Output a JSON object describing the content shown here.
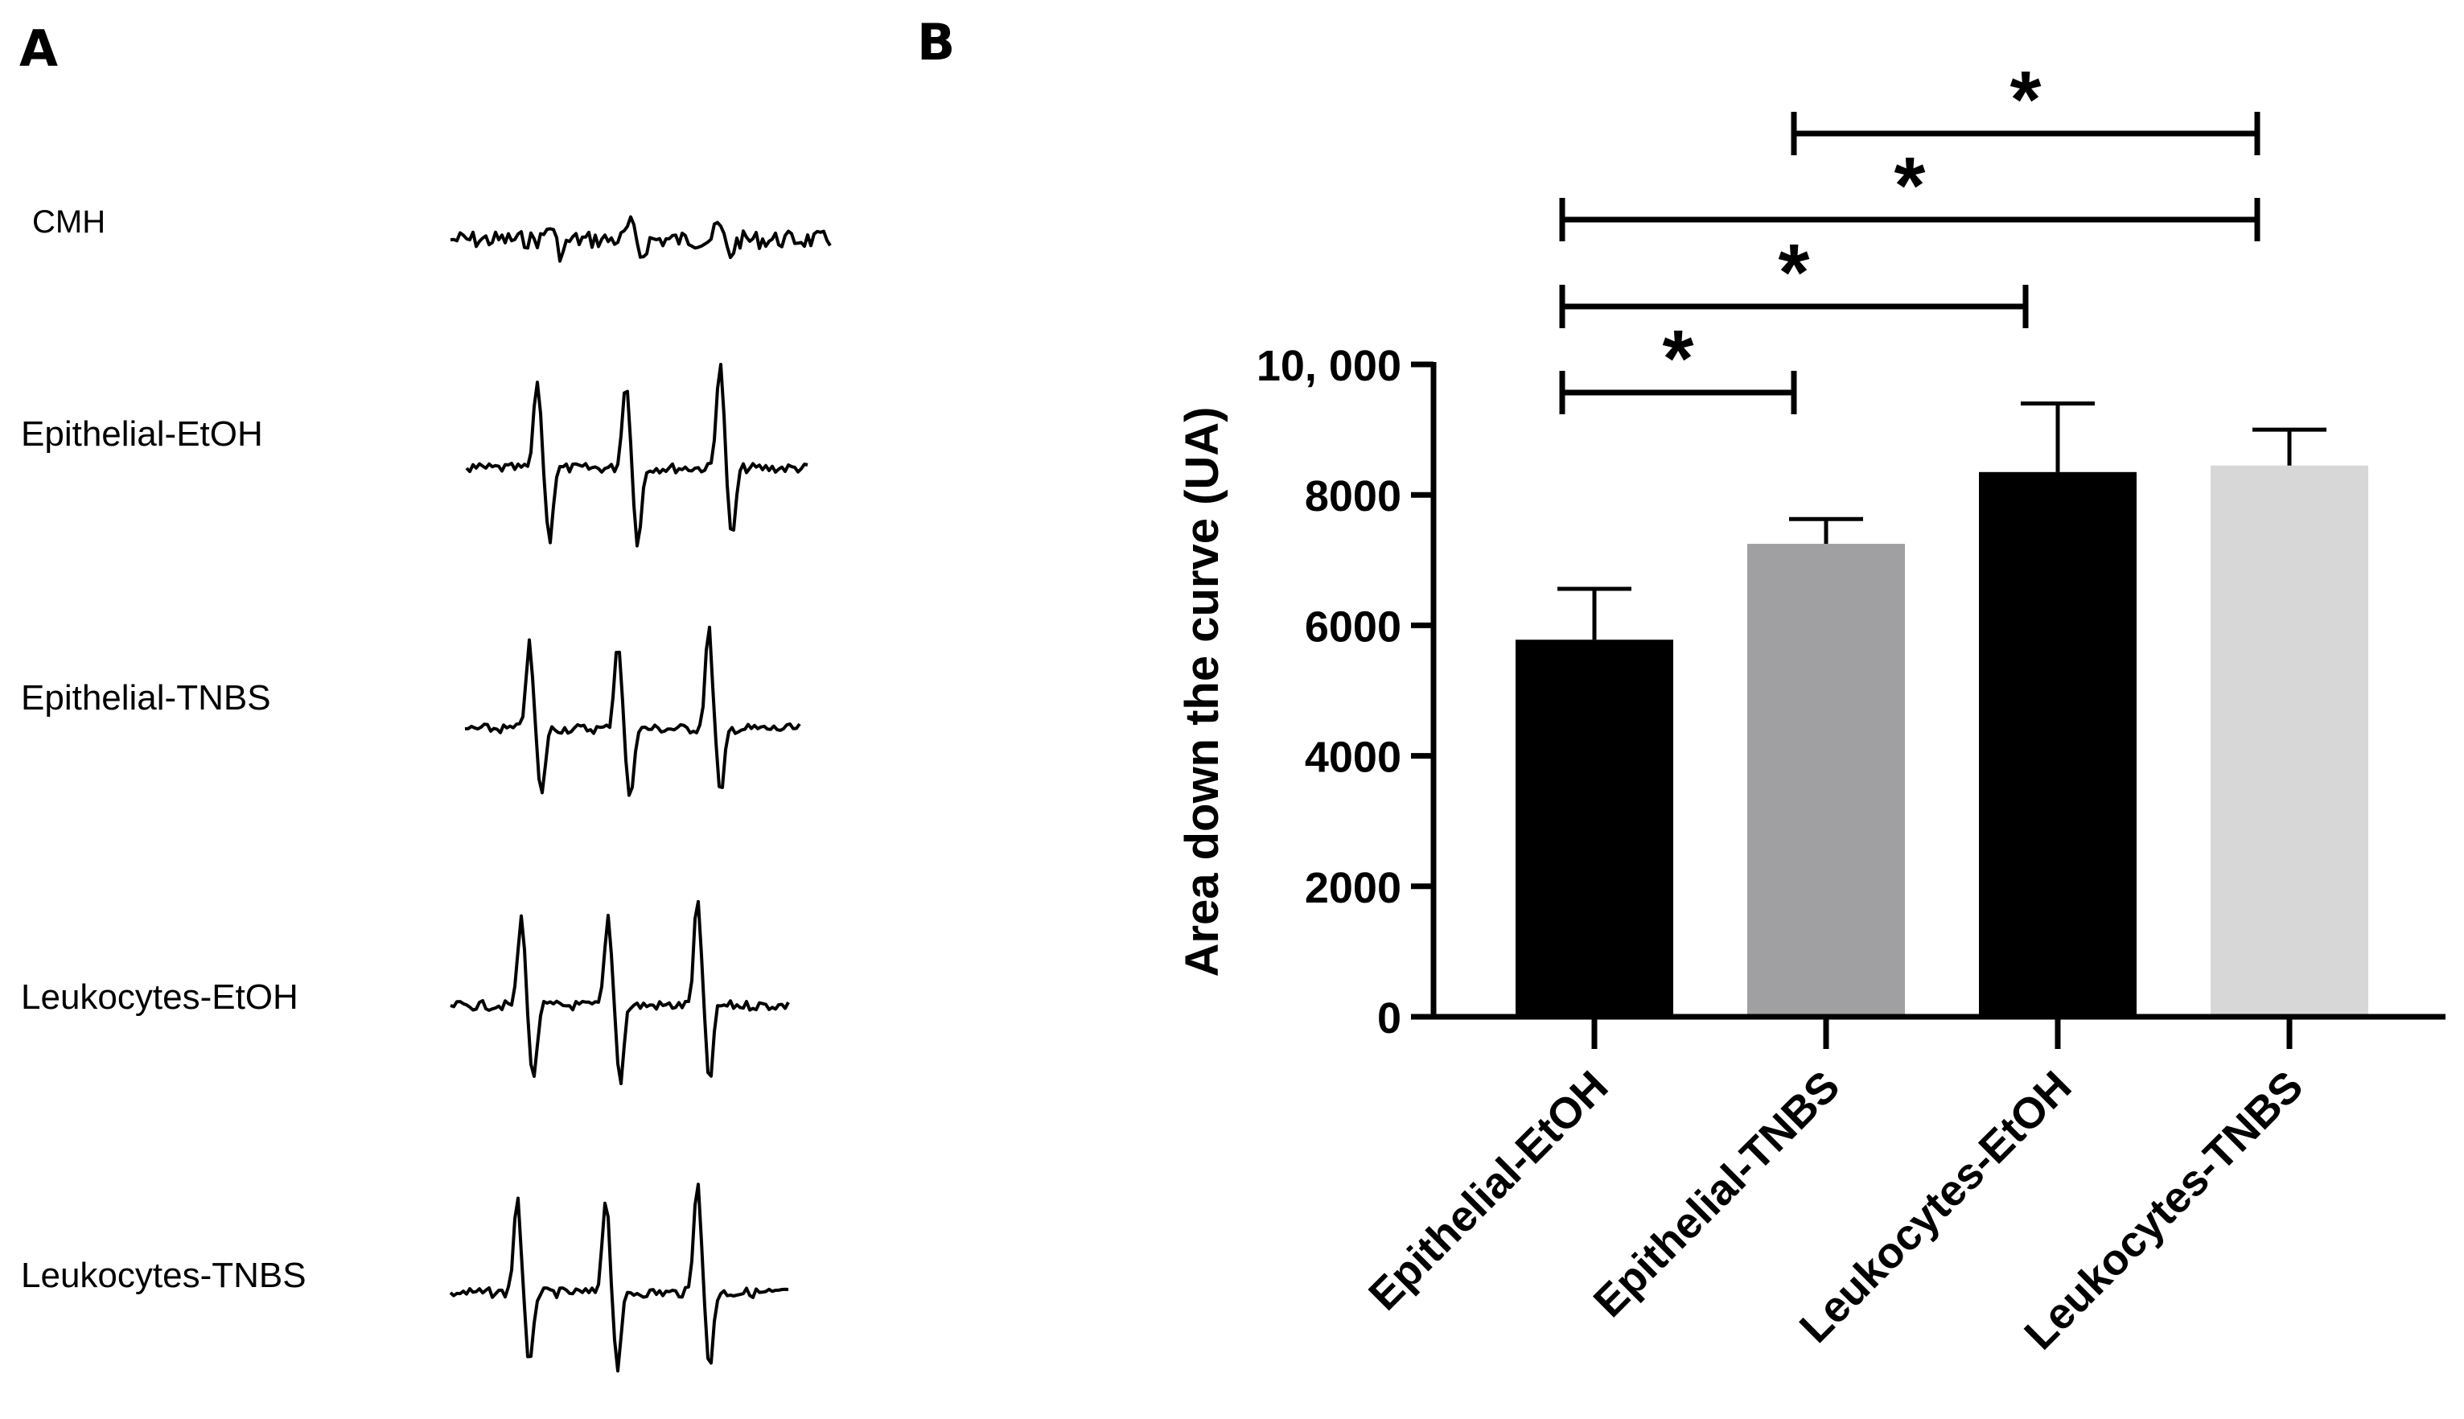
{
  "panels": {
    "a_label": "A",
    "b_label": "B"
  },
  "traces": [
    {
      "label": "CMH"
    },
    {
      "label": "Epithelial-EtOH"
    },
    {
      "label": "Epithelial-TNBS"
    },
    {
      "label": "Leukocytes-EtOH"
    },
    {
      "label": "Leukocytes-TNBS"
    }
  ],
  "chart_data": {
    "type": "bar",
    "title": "",
    "xlabel": "",
    "ylabel": "Area down the curve  (UA)",
    "categories": [
      "Epithelial-EtOH",
      "Epithelial-TNBS",
      "Leukocytes-EtOH",
      "Leukocytes-TNBS"
    ],
    "values": [
      5780,
      7250,
      8350,
      8450
    ],
    "errors": [
      780,
      380,
      1050,
      550
    ],
    "colors": [
      "#000000",
      "#a0a0a3",
      "#000000",
      "#d7d7d7"
    ],
    "ylim": [
      0,
      10000
    ],
    "yticks": [
      0,
      2000,
      4000,
      6000,
      8000,
      10000
    ],
    "ytick_labels": [
      "0",
      "2000",
      "4000",
      "6000",
      "8000",
      "10, 000"
    ],
    "grid": false,
    "significance": [
      {
        "from": 0,
        "to": 1,
        "label": "*"
      },
      {
        "from": 0,
        "to": 2,
        "label": "*"
      },
      {
        "from": 0,
        "to": 3,
        "label": "*"
      },
      {
        "from": 1,
        "to": 3,
        "label": "*"
      }
    ]
  }
}
